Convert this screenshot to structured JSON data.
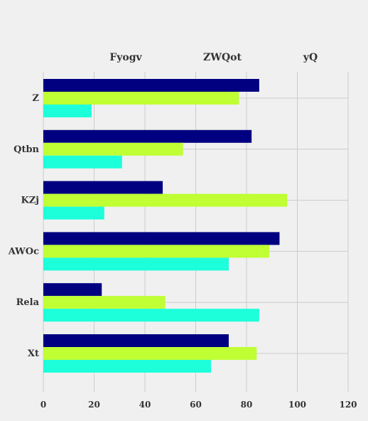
{
  "chart_data": {
    "type": "bar",
    "orientation": "horizontal",
    "categories": [
      "Z",
      "Qtbn",
      "KZj",
      "AWOc",
      "Rela",
      "Xt"
    ],
    "series": [
      {
        "name": "Fyogv",
        "color": "#000080",
        "values": [
          85,
          82,
          47,
          93,
          23,
          73
        ]
      },
      {
        "name": "ZWQot",
        "color": "#bfff33",
        "values": [
          77,
          55,
          96,
          89,
          48,
          84
        ]
      },
      {
        "name": "yQ",
        "color": "#1dffdb",
        "values": [
          19,
          31,
          24,
          73,
          85,
          66
        ]
      }
    ],
    "xlim": [
      0,
      120
    ],
    "xticks": [
      0,
      20,
      40,
      60,
      80,
      100,
      120
    ],
    "grid": true,
    "legend_position": "top"
  },
  "colors": {
    "background": "#f0f0f0",
    "grid": "#cbcbcb",
    "text": "#333333"
  }
}
